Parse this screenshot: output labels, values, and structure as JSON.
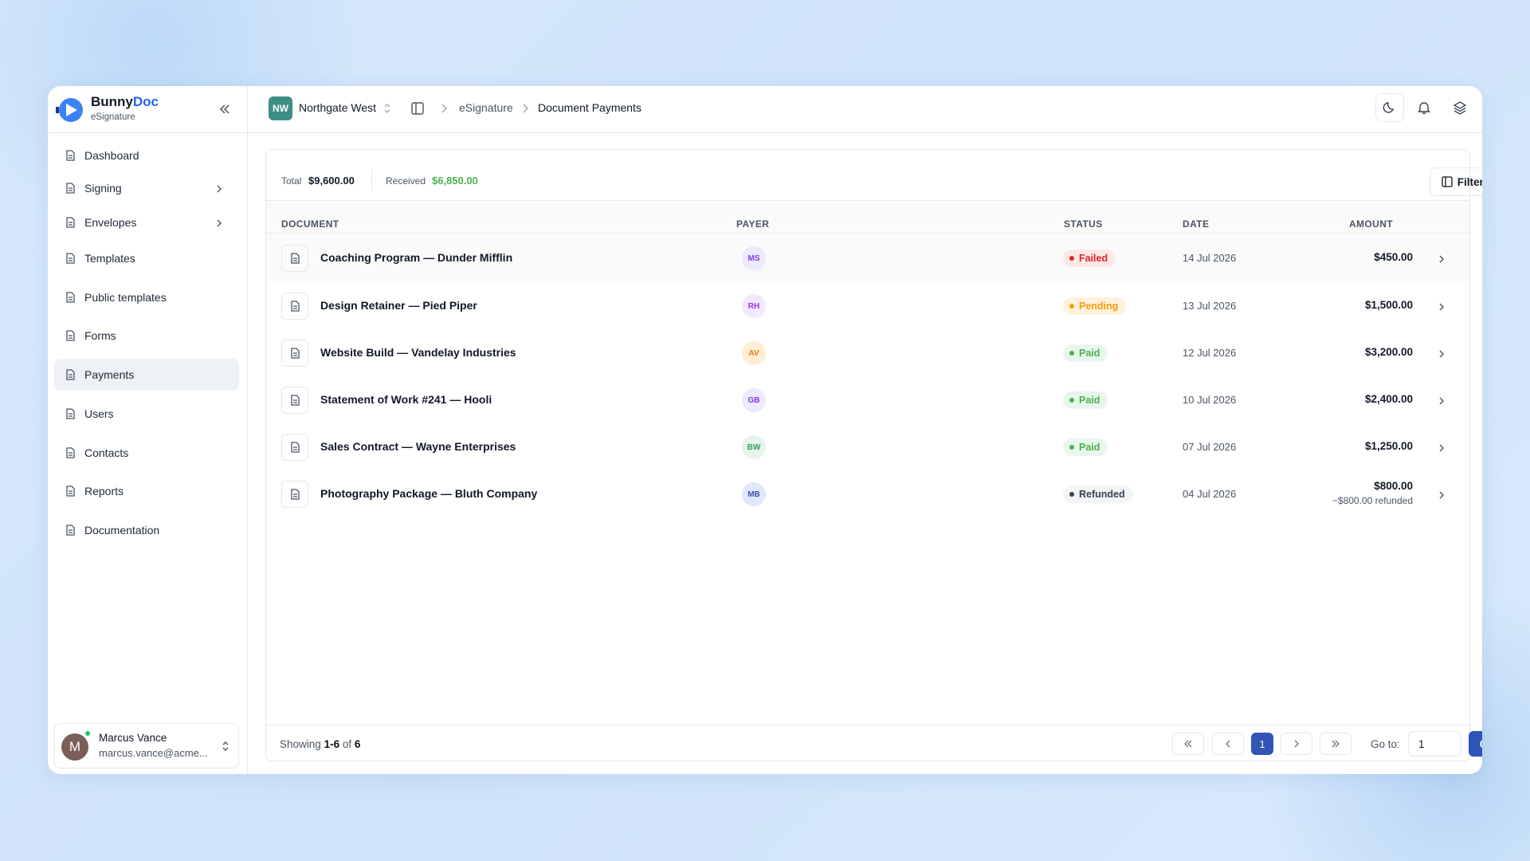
{
  "brand": {
    "name_a": "Bunny",
    "name_b": "Doc",
    "sub": "eSignature"
  },
  "nav": [
    "Dashboard",
    "Signing",
    "Envelopes",
    "Templates",
    "Public templates",
    "Forms",
    "Payments",
    "Users",
    "Contacts",
    "Reports",
    "Documentation"
  ],
  "user": {
    "initial": "M",
    "name": "Marcus Vance",
    "email": "marcus.vance@acme..."
  },
  "header": {
    "org_badge": "NW",
    "org": "Northgate West",
    "crumbs": [
      "eSignature",
      "Document Payments"
    ]
  },
  "summary": {
    "total_label": "Total",
    "total": "$9,600.00",
    "received_label": "Received",
    "received": "$6,850.00",
    "filters": "Filters"
  },
  "table": {
    "columns": [
      "DOCUMENT",
      "PAYER",
      "STATUS",
      "DATE",
      "AMOUNT"
    ],
    "rows": [
      [
        "Coaching Program — Dunder Mifflin",
        "MS",
        "Failed",
        "14 Jul 2026",
        "$450.00"
      ],
      [
        "Design Retainer — Pied Piper",
        "RH",
        "Pending",
        "13 Jul 2026",
        "$1,500.00"
      ],
      [
        "Website Build — Vandelay Industries",
        "AV",
        "Paid",
        "12 Jul 2026",
        "$3,200.00"
      ],
      [
        "Statement of Work #241 — Hooli",
        "GB",
        "Paid",
        "10 Jul 2026",
        "$2,400.00"
      ],
      [
        "Sales Contract — Wayne Enterprises",
        "BW",
        "Paid",
        "07 Jul 2026",
        "$1,250.00"
      ],
      [
        "Photography Package — Bluth Company",
        "MB",
        "Refunded",
        "04 Jul 2026",
        "$800.00"
      ]
    ],
    "refund_note": "−$800.00 refunded"
  },
  "footer": {
    "showing": [
      "Showing",
      "1-6",
      "of",
      "6"
    ],
    "page": "1",
    "goto_label": "Go to:",
    "goto_value": "1",
    "go": "Go"
  }
}
